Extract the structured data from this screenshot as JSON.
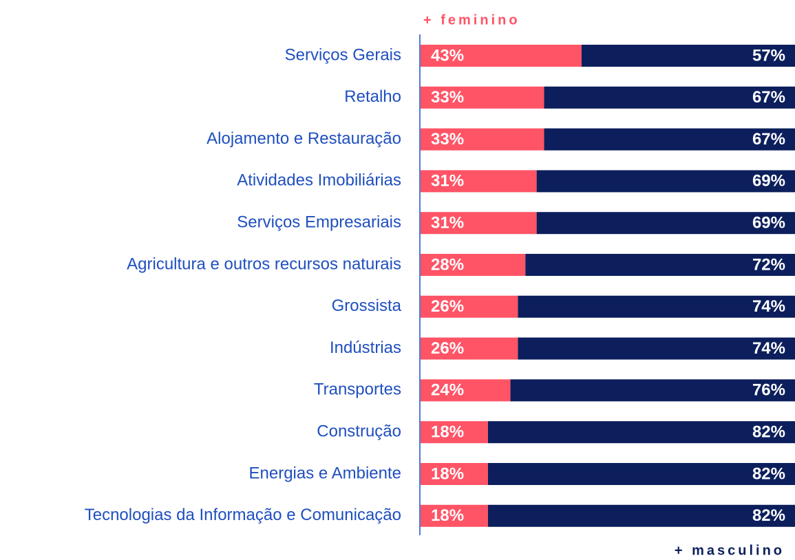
{
  "chart_data": {
    "type": "stacked_barh",
    "categories": [
      "Serviços Gerais",
      "Retalho",
      "Alojamento e Restauração",
      "Atividades Imobiliárias",
      "Serviços Empresariais",
      "Agricultura e outros recursos naturais",
      "Grossista",
      "Indústrias",
      "Transportes",
      "Construção",
      "Energias e Ambiente",
      "Tecnologias da Informação e Comunicação"
    ],
    "series": [
      {
        "name": "+ feminino",
        "color": "#ff5466",
        "values": [
          43,
          33,
          33,
          31,
          31,
          28,
          26,
          26,
          24,
          18,
          18,
          18
        ],
        "value_labels": [
          "43%",
          "33%",
          "33%",
          "31%",
          "31%",
          "28%",
          "26%",
          "26%",
          "24%",
          "18%",
          "18%",
          "18%"
        ]
      },
      {
        "name": "+ masculino",
        "color": "#0c1f5c",
        "values": [
          57,
          67,
          67,
          69,
          69,
          72,
          74,
          74,
          76,
          82,
          82,
          82
        ],
        "value_labels": [
          "57%",
          "67%",
          "67%",
          "69%",
          "69%",
          "72%",
          "74%",
          "74%",
          "76%",
          "82%",
          "82%",
          "82%"
        ]
      }
    ],
    "xlim": [
      0,
      100
    ]
  }
}
